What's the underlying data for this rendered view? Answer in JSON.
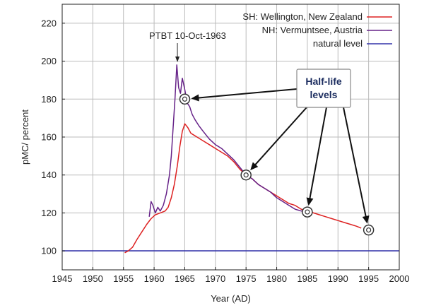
{
  "chart_data": {
    "type": "line",
    "xlabel": "Year (AD)",
    "ylabel": "pMC/ percent",
    "xlim": [
      1945,
      2000
    ],
    "ylim": [
      90,
      230
    ],
    "x_ticks": [
      1945,
      1950,
      1955,
      1960,
      1965,
      1970,
      1975,
      1980,
      1985,
      1990,
      1995,
      2000
    ],
    "y_ticks": [
      100,
      120,
      140,
      160,
      180,
      200,
      220
    ],
    "grid": true,
    "legend_position": "top-right",
    "series": [
      {
        "name": "SH: Wellington, New Zealand",
        "color": "#dd2222",
        "points": [
          [
            1955.2,
            99
          ],
          [
            1955.8,
            100
          ],
          [
            1956.5,
            102
          ],
          [
            1957.2,
            106
          ],
          [
            1958.0,
            110
          ],
          [
            1958.8,
            114
          ],
          [
            1959.5,
            117
          ],
          [
            1960.2,
            119
          ],
          [
            1961.0,
            120
          ],
          [
            1961.8,
            121
          ],
          [
            1962.3,
            123
          ],
          [
            1962.8,
            128
          ],
          [
            1963.3,
            135
          ],
          [
            1963.8,
            145
          ],
          [
            1964.2,
            155
          ],
          [
            1964.6,
            163
          ],
          [
            1965.0,
            167
          ],
          [
            1965.5,
            165
          ],
          [
            1966.0,
            162
          ],
          [
            1966.5,
            161
          ],
          [
            1967.0,
            160
          ],
          [
            1968.0,
            158
          ],
          [
            1969.0,
            156
          ],
          [
            1970.0,
            154
          ],
          [
            1971.0,
            152
          ],
          [
            1972.0,
            150
          ],
          [
            1973.0,
            147
          ],
          [
            1974.0,
            143
          ],
          [
            1975.0,
            140
          ],
          [
            1976.0,
            138
          ],
          [
            1977.0,
            135
          ],
          [
            1978.0,
            133
          ],
          [
            1979.0,
            131
          ],
          [
            1980.0,
            129
          ],
          [
            1981.0,
            127
          ],
          [
            1982.0,
            125
          ],
          [
            1983.0,
            124
          ],
          [
            1984.0,
            122
          ],
          [
            1985.0,
            121
          ],
          [
            1986.0,
            120
          ],
          [
            1987.0,
            119
          ],
          [
            1988.0,
            118
          ],
          [
            1989.0,
            117
          ],
          [
            1990.0,
            116
          ],
          [
            1991.0,
            115
          ],
          [
            1992.0,
            114
          ],
          [
            1993.0,
            113
          ],
          [
            1993.8,
            112
          ]
        ]
      },
      {
        "name": "NH: Vermuntsee, Austria",
        "color": "#662288",
        "points": [
          [
            1959.2,
            118
          ],
          [
            1959.5,
            126
          ],
          [
            1959.8,
            124
          ],
          [
            1960.2,
            120
          ],
          [
            1960.6,
            123
          ],
          [
            1961.0,
            121
          ],
          [
            1961.5,
            124
          ],
          [
            1962.0,
            130
          ],
          [
            1962.5,
            140
          ],
          [
            1962.8,
            150
          ],
          [
            1963.1,
            165
          ],
          [
            1963.4,
            180
          ],
          [
            1963.7,
            198
          ],
          [
            1964.0,
            186
          ],
          [
            1964.3,
            183
          ],
          [
            1964.6,
            191
          ],
          [
            1965.0,
            185
          ],
          [
            1965.4,
            178
          ],
          [
            1965.8,
            176
          ],
          [
            1966.2,
            172
          ],
          [
            1966.7,
            169
          ],
          [
            1967.3,
            166
          ],
          [
            1968.0,
            163
          ],
          [
            1969.0,
            159
          ],
          [
            1970.0,
            156
          ],
          [
            1971.0,
            154
          ],
          [
            1972.0,
            151
          ],
          [
            1973.0,
            148
          ],
          [
            1974.0,
            144
          ],
          [
            1975.0,
            140
          ],
          [
            1976.0,
            138
          ],
          [
            1977.0,
            135
          ],
          [
            1978.0,
            133
          ],
          [
            1979.0,
            131
          ],
          [
            1980.0,
            128
          ],
          [
            1981.0,
            126
          ],
          [
            1982.0,
            124
          ],
          [
            1983.0,
            122
          ],
          [
            1984.0,
            121
          ],
          [
            1985.0,
            121
          ]
        ]
      },
      {
        "name": "natural level",
        "color": "#3333aa",
        "points": [
          [
            1945,
            100
          ],
          [
            2000,
            100
          ]
        ]
      }
    ],
    "annotations": {
      "ptbt_label": "PTBT 10-Oct-1963",
      "ptbt_x": 1963.8,
      "callout_line1": "Half-life",
      "callout_line2": "levels",
      "half_life_points": [
        {
          "x": 1965,
          "y": 180
        },
        {
          "x": 1975,
          "y": 140
        },
        {
          "x": 1985,
          "y": 120.5
        },
        {
          "x": 1995,
          "y": 111
        }
      ]
    }
  }
}
